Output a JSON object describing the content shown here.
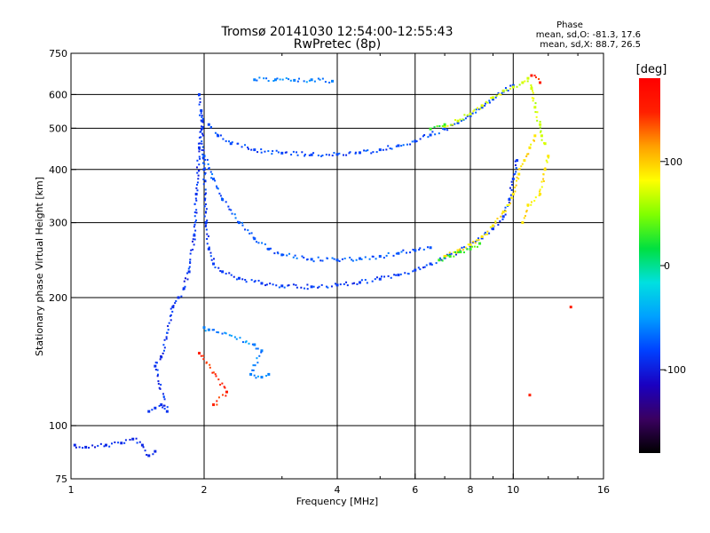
{
  "chart_data": {
    "type": "scatter",
    "title": "Tromsø 20141030 12:54:00-12:55:43",
    "subtitle": "RwPretec (8p)",
    "xlabel": "Frequency [MHz]",
    "ylabel": "Stationary phase Virtual Height [km]",
    "xscale": "log",
    "yscale": "log",
    "xlim": [
      1,
      16
    ],
    "ylim": [
      75,
      750
    ],
    "xticks": [
      1,
      2,
      4,
      6,
      8,
      10,
      16
    ],
    "xtick_labels": [
      "1",
      "2",
      "4",
      "6",
      "8",
      "10",
      "16"
    ],
    "yticks": [
      75,
      100,
      200,
      300,
      400,
      500,
      600,
      750
    ],
    "ytick_labels": [
      "75",
      "100",
      "200",
      "300",
      "400",
      "500",
      "600",
      "750"
    ],
    "grid": true,
    "phase_stats": {
      "title": "Phase",
      "o_line": "mean, sd,O: -81.3, 17.6",
      "x_line": "mean, sd,X:  88.7, 26.5"
    },
    "colorbar": {
      "label": "[deg]",
      "range": [
        -180,
        180
      ],
      "ticks": [
        100,
        0,
        -100
      ],
      "tick_labels": [
        "100",
        "0",
        "-100"
      ],
      "colors": [
        "#000000",
        "#3a0060",
        "#1a00c0",
        "#0040ff",
        "#00a0ff",
        "#00e0e0",
        "#00e040",
        "#80ff00",
        "#ffff00",
        "#ffa000",
        "#ff2000",
        "#ff0000"
      ]
    },
    "traces": [
      {
        "name": "",
        "phase": -95,
        "points": [
          [
            1.02,
            90
          ],
          [
            1.08,
            89
          ],
          [
            1.2,
            90
          ],
          [
            1.3,
            91
          ],
          [
            1.38,
            93
          ],
          [
            1.45,
            90
          ],
          [
            1.5,
            85
          ],
          [
            1.55,
            87
          ]
        ]
      },
      {
        "name": "",
        "phase": -90,
        "points": [
          [
            1.5,
            108
          ],
          [
            1.55,
            110
          ],
          [
            1.6,
            112
          ],
          [
            1.65,
            108
          ],
          [
            1.55,
            138
          ],
          [
            1.6,
            145
          ],
          [
            1.7,
            190
          ],
          [
            1.75,
            200
          ],
          [
            1.8,
            210
          ],
          [
            1.85,
            230
          ],
          [
            1.9,
            280
          ],
          [
            1.92,
            350
          ],
          [
            1.95,
            450
          ],
          [
            1.97,
            550
          ]
        ]
      },
      {
        "name": "",
        "phase": -85,
        "points": [
          [
            1.95,
            600
          ],
          [
            1.98,
            520
          ],
          [
            2.0,
            400
          ],
          [
            2.02,
            300
          ],
          [
            2.05,
            260
          ],
          [
            2.1,
            240
          ],
          [
            2.2,
            230
          ],
          [
            2.4,
            222
          ],
          [
            2.7,
            216
          ],
          [
            3.0,
            213
          ],
          [
            3.5,
            212
          ],
          [
            4.0,
            214
          ],
          [
            4.5,
            217
          ],
          [
            5.0,
            221
          ],
          [
            5.5,
            226
          ],
          [
            6.0,
            232
          ],
          [
            6.5,
            240
          ],
          [
            7.0,
            248
          ],
          [
            7.5,
            256
          ],
          [
            8.0,
            265
          ],
          [
            8.5,
            276
          ],
          [
            9.0,
            290
          ],
          [
            9.5,
            310
          ],
          [
            9.8,
            340
          ],
          [
            10.0,
            380
          ],
          [
            10.2,
            420
          ]
        ]
      },
      {
        "name": "",
        "phase": -80,
        "points": [
          [
            2.05,
            510
          ],
          [
            2.15,
            480
          ],
          [
            2.3,
            460
          ],
          [
            2.6,
            445
          ],
          [
            3.0,
            437
          ],
          [
            3.5,
            433
          ],
          [
            4.0,
            434
          ],
          [
            4.5,
            438
          ],
          [
            5.0,
            445
          ],
          [
            5.5,
            455
          ],
          [
            6.0,
            466
          ],
          [
            6.5,
            482
          ],
          [
            7.0,
            498
          ],
          [
            7.5,
            515
          ],
          [
            8.0,
            535
          ],
          [
            8.5,
            560
          ],
          [
            9.0,
            585
          ],
          [
            9.5,
            610
          ],
          [
            10.0,
            630
          ]
        ]
      },
      {
        "name": "",
        "phase": -75,
        "points": [
          [
            2.0,
            430
          ],
          [
            2.1,
            380
          ],
          [
            2.2,
            340
          ],
          [
            2.4,
            300
          ],
          [
            2.6,
            275
          ],
          [
            2.8,
            260
          ],
          [
            3.0,
            252
          ],
          [
            3.5,
            246
          ],
          [
            4.0,
            245
          ],
          [
            4.5,
            247
          ],
          [
            5.0,
            250
          ],
          [
            5.5,
            254
          ],
          [
            6.0,
            258
          ],
          [
            6.5,
            262
          ]
        ]
      },
      {
        "name": "",
        "phase": -60,
        "points": [
          [
            2.6,
            650
          ],
          [
            2.9,
            650
          ],
          [
            3.2,
            648
          ],
          [
            3.5,
            650
          ],
          [
            3.9,
            645
          ],
          [
            2.0,
            170
          ],
          [
            2.05,
            168
          ],
          [
            2.6,
            155
          ],
          [
            2.7,
            150
          ],
          [
            2.55,
            132
          ],
          [
            2.7,
            130
          ],
          [
            2.8,
            132
          ]
        ]
      },
      {
        "name": "",
        "phase": 90,
        "points": [
          [
            7.0,
            250
          ],
          [
            7.5,
            258
          ],
          [
            8.0,
            266
          ],
          [
            8.5,
            278
          ],
          [
            9.0,
            295
          ],
          [
            9.5,
            318
          ],
          [
            10.0,
            350
          ],
          [
            10.3,
            390
          ],
          [
            10.6,
            420
          ],
          [
            10.9,
            450
          ],
          [
            11.2,
            480
          ],
          [
            10.5,
            300
          ],
          [
            10.8,
            330
          ],
          [
            11.5,
            350
          ],
          [
            11.8,
            400
          ],
          [
            12.0,
            430
          ]
        ]
      },
      {
        "name": "",
        "phase": 70,
        "points": [
          [
            7.0,
            505
          ],
          [
            7.5,
            520
          ],
          [
            8.0,
            540
          ],
          [
            8.5,
            565
          ],
          [
            9.0,
            590
          ],
          [
            9.5,
            612
          ],
          [
            10.0,
            625
          ],
          [
            10.5,
            640
          ],
          [
            10.8,
            655
          ],
          [
            11.0,
            620
          ],
          [
            11.2,
            560
          ],
          [
            11.5,
            510
          ],
          [
            11.6,
            480
          ],
          [
            11.8,
            460
          ]
        ]
      },
      {
        "name": "",
        "phase": 30,
        "points": [
          [
            6.8,
            245
          ],
          [
            7.2,
            250
          ],
          [
            7.6,
            256
          ],
          [
            8.0,
            260
          ],
          [
            8.4,
            268
          ],
          [
            6.5,
            498
          ],
          [
            7.0,
            510
          ]
        ]
      },
      {
        "name": "",
        "phase": 150,
        "points": [
          [
            1.95,
            148
          ],
          [
            2.25,
            120
          ],
          [
            2.1,
            112
          ],
          [
            11.0,
            665
          ],
          [
            11.5,
            640
          ],
          [
            13.5,
            190
          ],
          [
            10.9,
            118
          ]
        ]
      }
    ]
  }
}
